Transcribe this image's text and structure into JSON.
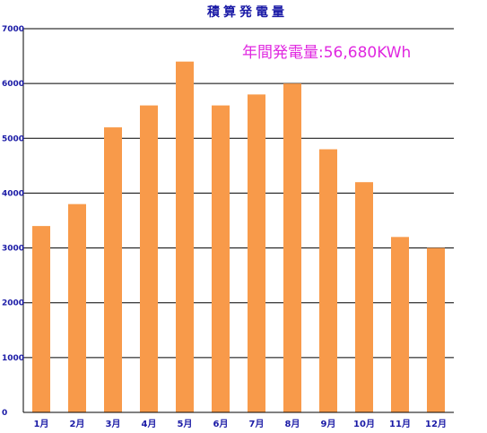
{
  "chart_data": {
    "type": "bar",
    "title": "積算発電量",
    "annotation": "年間発電量:56,680KWh",
    "categories": [
      "1月",
      "2月",
      "3月",
      "4月",
      "5月",
      "6月",
      "7月",
      "8月",
      "9月",
      "10月",
      "11月",
      "12月"
    ],
    "values": [
      3400,
      3800,
      5200,
      5600,
      6400,
      5600,
      5800,
      6000,
      4800,
      4200,
      3200,
      3000
    ],
    "ylim": [
      0,
      7000
    ],
    "yticks": [
      "0",
      "1000",
      "2000",
      "3000",
      "4000",
      "5000",
      "6000",
      "7000"
    ],
    "xlabel": "",
    "ylabel": "",
    "grid": true,
    "legend": "none",
    "colors": {
      "bar": "#f89a4a",
      "title": "#1a1aa6",
      "ticks": "#1a1aa6",
      "annotation": "#e028e0",
      "grid": "#000000"
    }
  }
}
